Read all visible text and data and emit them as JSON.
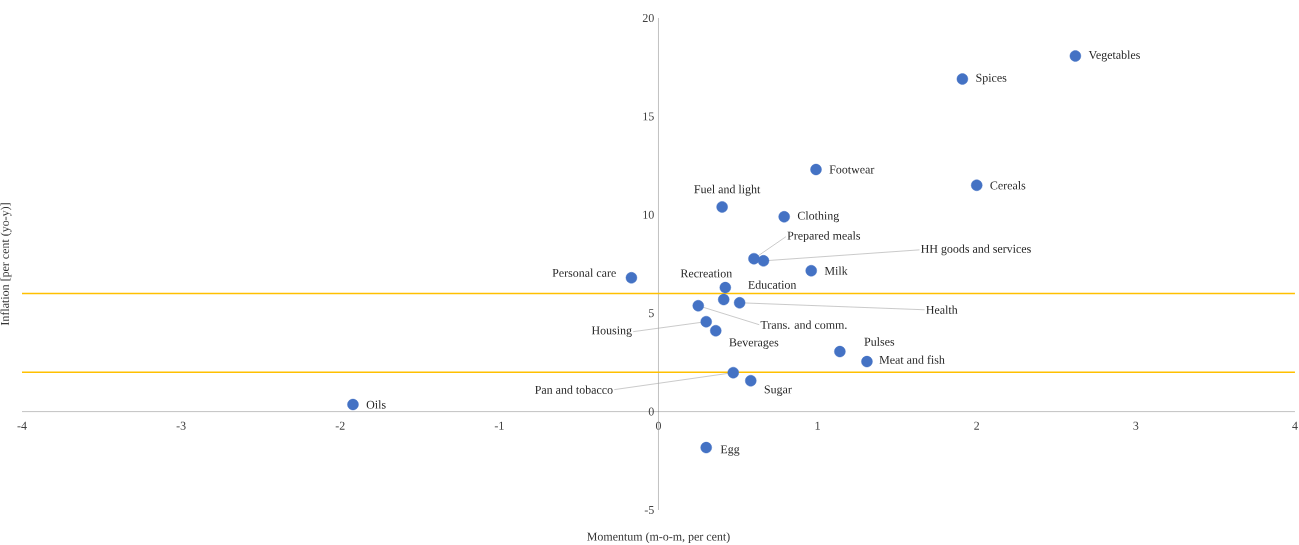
{
  "chart_data": {
    "type": "scatter",
    "xlabel": "Momentum (m-o-m, per cent)",
    "ylabel": "Inflation [per cent (yo-y)]",
    "xlim": [
      -4,
      4
    ],
    "ylim": [
      -5,
      20
    ],
    "xticks": [
      -4,
      -3,
      -2,
      -1,
      0,
      1,
      2,
      3,
      4
    ],
    "yticks": [
      -5,
      0,
      5,
      10,
      15,
      20
    ],
    "marker": "circle",
    "x": [
      2.62,
      1.91,
      0.99,
      2.0,
      0.4,
      0.79,
      0.6,
      0.66,
      0.96,
      -0.17,
      0.42,
      0.41,
      0.51,
      0.25,
      0.3,
      0.36,
      1.14,
      1.31,
      0.47,
      0.58,
      -1.92,
      0.3
    ],
    "series": [
      {
        "color": "#4472c4",
        "values": [
          18.07,
          16.9,
          12.3,
          11.5,
          10.4,
          9.9,
          7.77,
          7.66,
          7.16,
          6.8,
          6.3,
          5.69,
          5.53,
          5.38,
          4.57,
          4.11,
          3.05,
          2.54,
          1.98,
          1.57,
          0.36,
          -1.83
        ]
      }
    ],
    "ref_lines": [
      {
        "axis": "y",
        "value": 6,
        "color": "#ffc000"
      },
      {
        "axis": "y",
        "value": 2,
        "color": "#ffc000"
      }
    ],
    "annotations": [
      {
        "text": "Vegetables",
        "x": 2.62,
        "y": 18.07
      },
      {
        "text": "Spices",
        "x": 1.91,
        "y": 16.9
      },
      {
        "text": "Footwear",
        "x": 0.99,
        "y": 12.3
      },
      {
        "text": "Cereals",
        "x": 2.0,
        "y": 11.5
      },
      {
        "text": "Fuel and light",
        "x": 0.4,
        "y": 10.4
      },
      {
        "text": "Clothing",
        "x": 0.79,
        "y": 9.9
      },
      {
        "text": "Prepared meals",
        "x": 0.6,
        "y": 7.77
      },
      {
        "text": "HH goods and services",
        "x": 0.66,
        "y": 7.66
      },
      {
        "text": "Milk",
        "x": 0.96,
        "y": 7.16
      },
      {
        "text": "Personal care",
        "x": -0.17,
        "y": 6.8
      },
      {
        "text": "Recreation",
        "x": 0.42,
        "y": 6.3
      },
      {
        "text": "Education",
        "x": 0.41,
        "y": 5.69
      },
      {
        "text": "Health",
        "x": 0.51,
        "y": 5.53
      },
      {
        "text": "Trans. and comm.",
        "x": 0.25,
        "y": 5.38
      },
      {
        "text": "Housing",
        "x": 0.3,
        "y": 4.57
      },
      {
        "text": "Beverages",
        "x": 0.36,
        "y": 4.11
      },
      {
        "text": "Pulses",
        "x": 1.14,
        "y": 3.05
      },
      {
        "text": "Meat and fish",
        "x": 1.31,
        "y": 2.54
      },
      {
        "text": "Pan and tobacco",
        "x": 0.47,
        "y": 1.98
      },
      {
        "text": "Sugar",
        "x": 0.58,
        "y": 1.57
      },
      {
        "text": "Oils",
        "x": -1.92,
        "y": 0.36
      },
      {
        "text": "Egg",
        "x": 0.3,
        "y": -1.83
      }
    ]
  }
}
